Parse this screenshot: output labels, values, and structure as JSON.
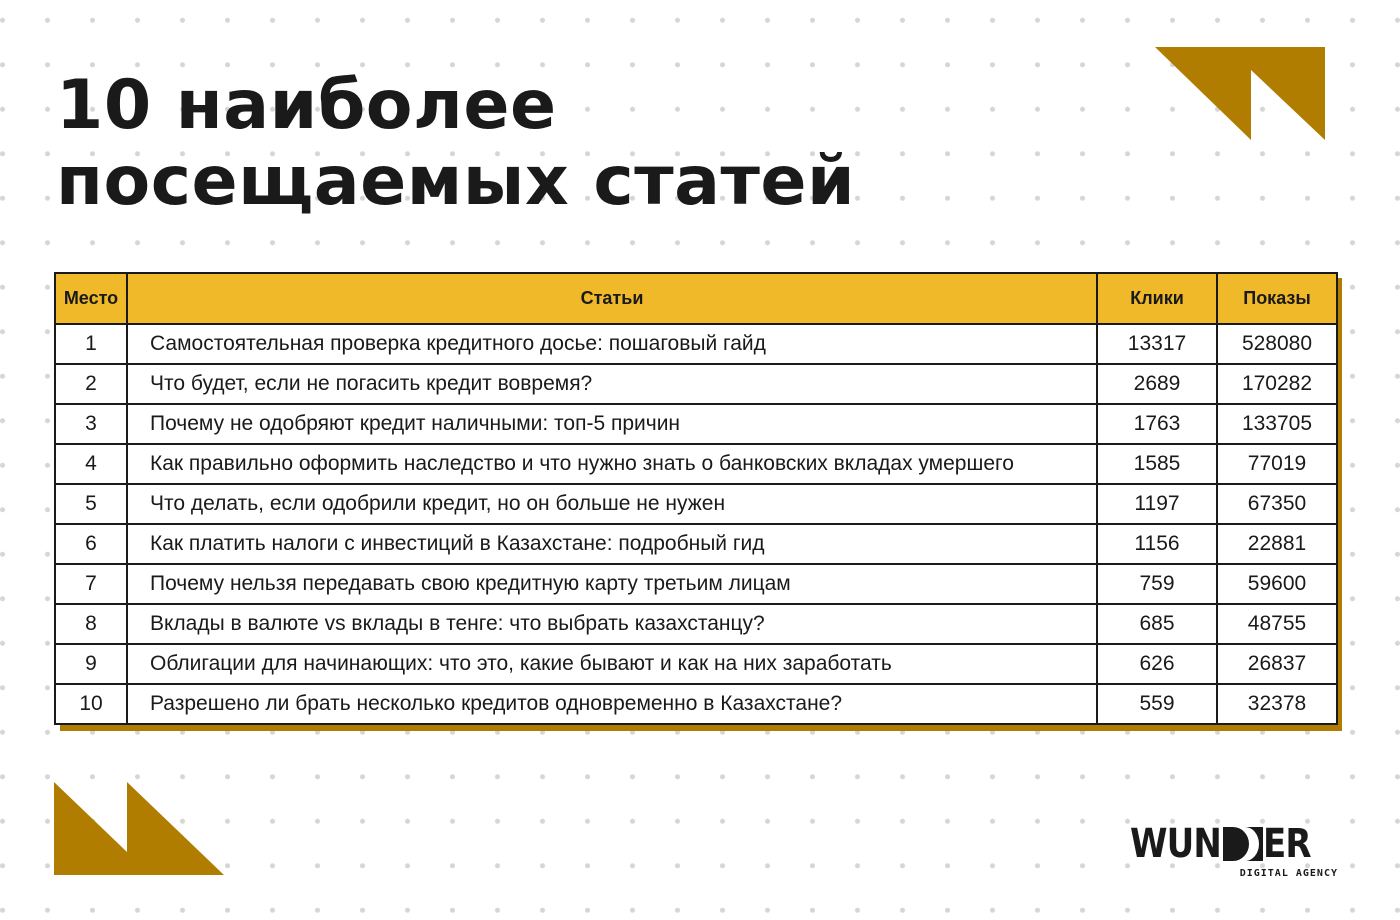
{
  "title": {
    "line1": "10 наиболее",
    "line2": "посещаемых статей"
  },
  "colors": {
    "accent_gold": "#b07d00",
    "header_yellow": "#f0b92a"
  },
  "table": {
    "headers": [
      "Место",
      "Статьи",
      "Клики",
      "Показы"
    ],
    "rows": [
      {
        "place": "1",
        "article": "Самостоятельная проверка кредитного досье: пошаговый гайд",
        "clicks": "13317",
        "views": "528080"
      },
      {
        "place": "2",
        "article": "Что будет, если не погасить кредит вовремя?",
        "clicks": "2689",
        "views": "170282"
      },
      {
        "place": "3",
        "article": "Почему не одобряют кредит наличными: топ-5 причин",
        "clicks": "1763",
        "views": "133705"
      },
      {
        "place": "4",
        "article": "Как правильно оформить наследство и что нужно знать о банковских вкладах  умершего",
        "clicks": "1585",
        "views": "77019"
      },
      {
        "place": "5",
        "article": "Что делать, если одобрили кредит, но он больше не нужен",
        "clicks": "1197",
        "views": "67350"
      },
      {
        "place": "6",
        "article": "Как платить налоги с инвестиций в Казахстане: подробный гид",
        "clicks": "1156",
        "views": "22881"
      },
      {
        "place": "7",
        "article": "Почему нельзя передавать свою кредитную карту третьим лицам",
        "clicks": "759",
        "views": "59600"
      },
      {
        "place": "8",
        "article": "Вклады в валюте vs вклады в тенге: что выбрать казахстанцу?",
        "clicks": "685",
        "views": "48755"
      },
      {
        "place": "9",
        "article": "Облигации для начинающих: что это, какие бывают и как на них заработать",
        "clicks": "626",
        "views": "26837"
      },
      {
        "place": "10",
        "article": "Разрешено ли брать несколько кредитов одновременно в Казахстане?",
        "clicks": "559",
        "views": "32378"
      }
    ]
  },
  "logo": {
    "name": "WUNDER",
    "tagline": "DIGITAL AGENCY"
  }
}
